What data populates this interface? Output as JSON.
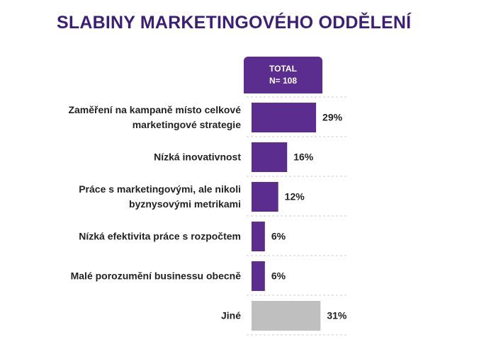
{
  "chart_data": {
    "type": "bar",
    "orientation": "horizontal",
    "title": "SLABINY MARKETINGOVÉHO ODDĚLENÍ",
    "column_header": [
      "TOTAL",
      "N= 108"
    ],
    "categories": [
      "Zaměření na kampaně místo celkové marketingové strategie",
      "Nízká inovativnost",
      "Práce s marketingovými, ale nikoli byznysovými metrikami",
      "Nízká efektivita práce s rozpočtem",
      "Malé porozumění businessu obecně",
      "Jiné"
    ],
    "values": [
      29,
      16,
      12,
      6,
      6,
      31
    ],
    "value_labels": [
      "29%",
      "16%",
      "12%",
      "6%",
      "6%",
      "31%"
    ],
    "colors": [
      "#5b2d8e",
      "#5b2d8e",
      "#5b2d8e",
      "#5b2d8e",
      "#5b2d8e",
      "#bfbfbf"
    ]
  }
}
